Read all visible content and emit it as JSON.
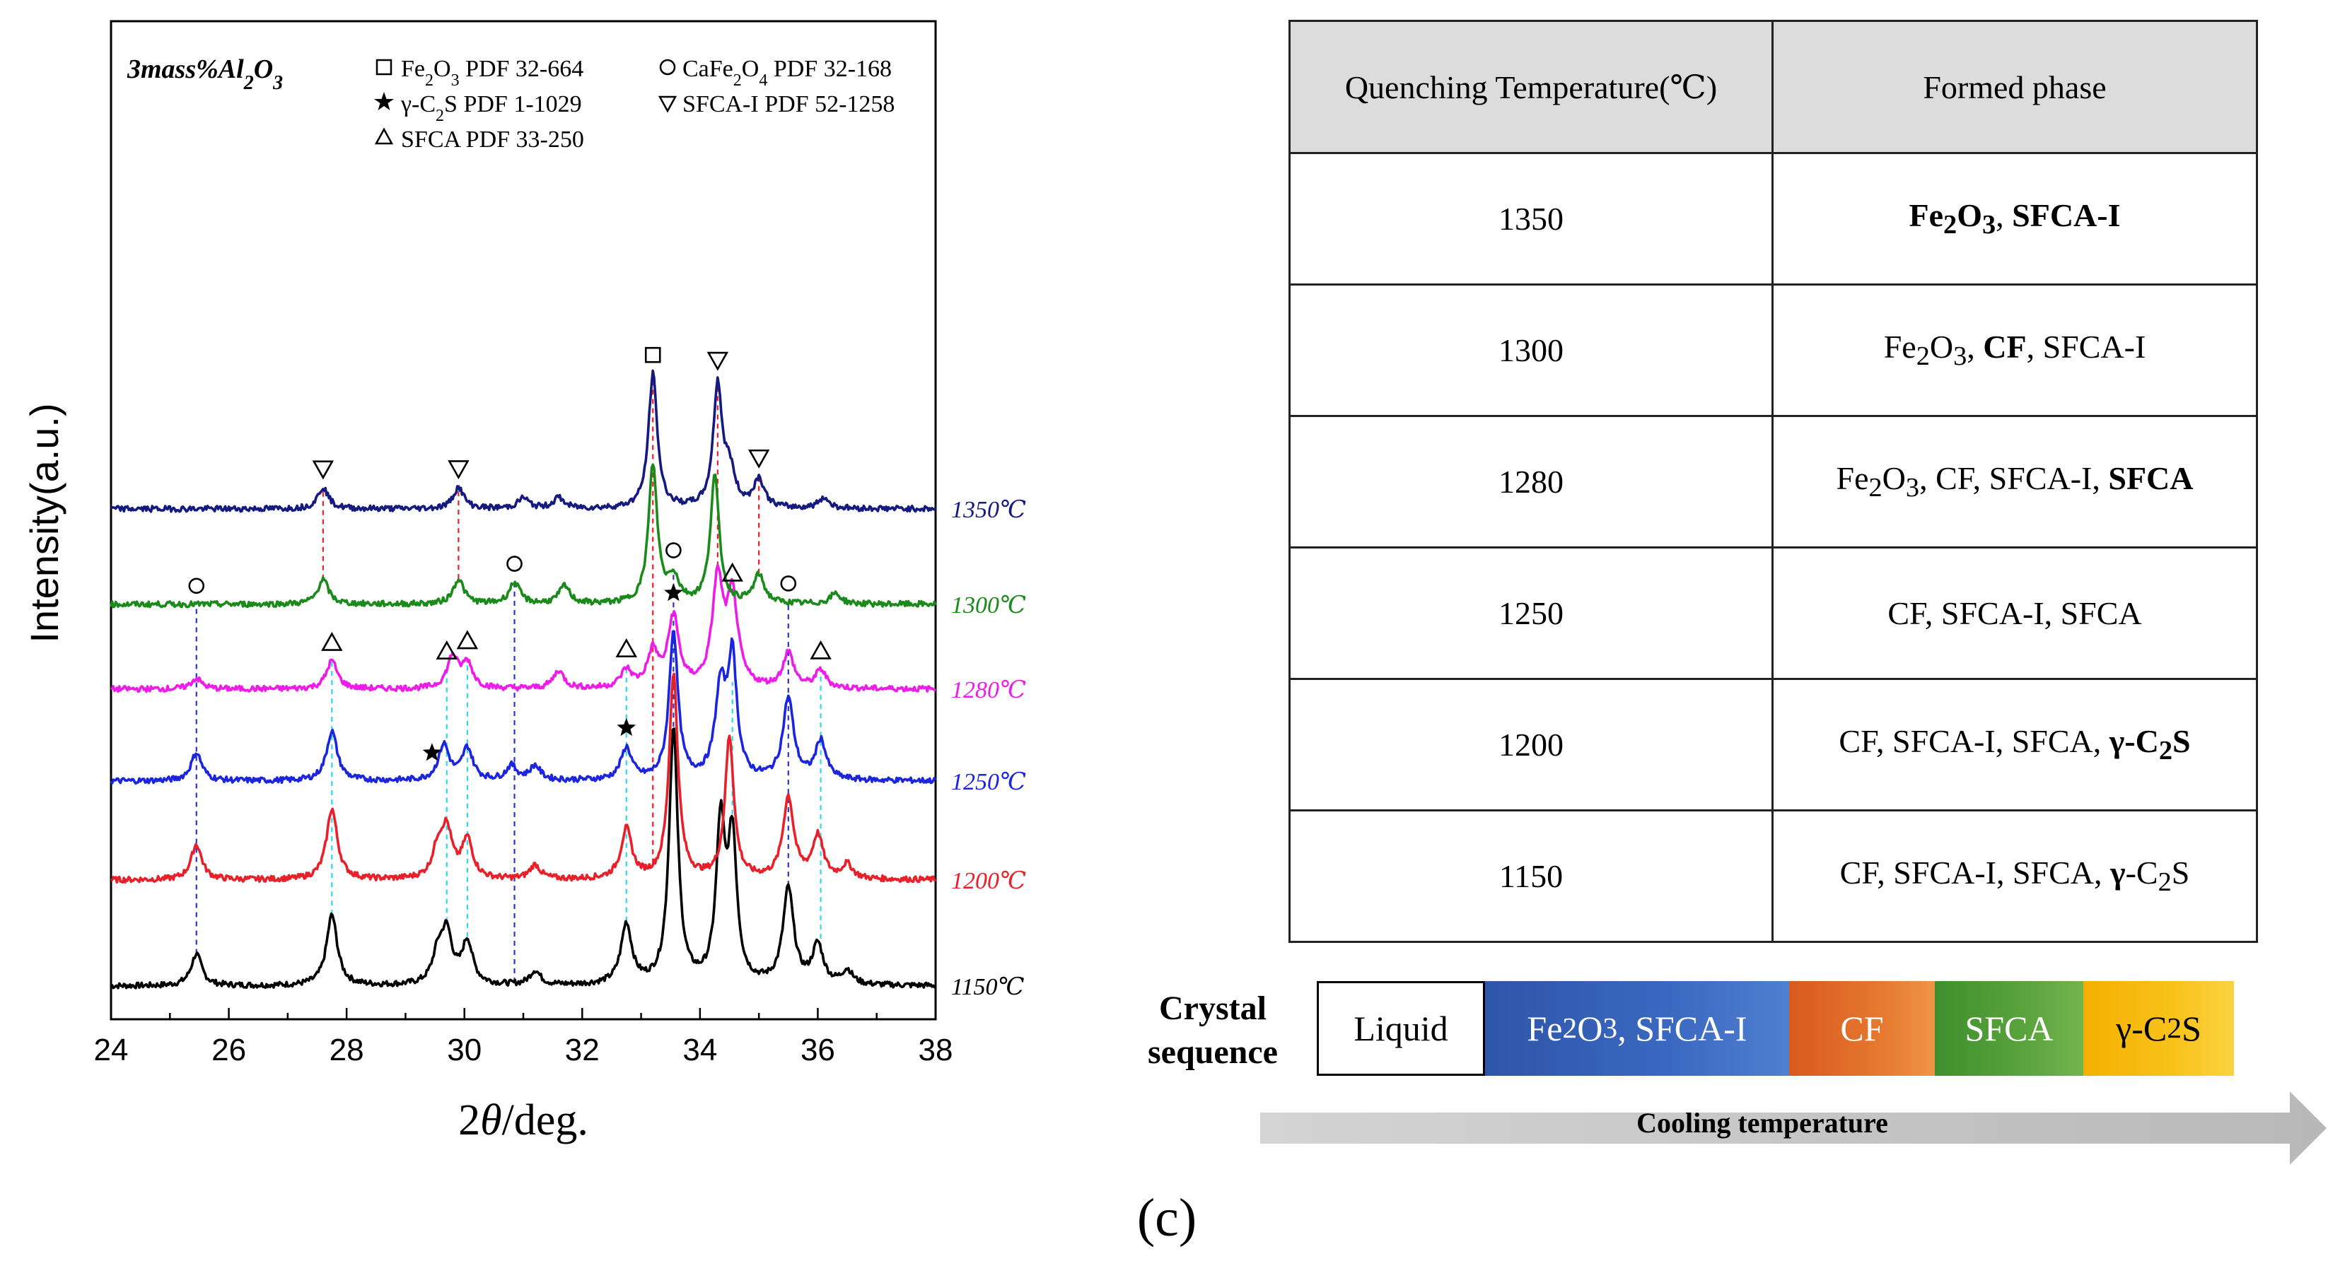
{
  "chart_data": {
    "type": "line",
    "title": "",
    "sample_label": "3mass%Al2O3",
    "xlabel": "2θ/deg.",
    "ylabel": "Intensity(a.u.)",
    "xlim": [
      24,
      38
    ],
    "xticks": [
      24,
      26,
      28,
      30,
      32,
      34,
      36,
      38
    ],
    "y_units": "arbitrary, vertically offset patterns",
    "legend": {
      "placement": "top",
      "entries": [
        {
          "symbol": "square",
          "text": "Fe2O3 PDF 32-664"
        },
        {
          "symbol": "circle",
          "text": "CaFe2O4 PDF 32-168"
        },
        {
          "symbol": "star",
          "text": "γ-C2S PDF 1-1029"
        },
        {
          "symbol": "down-triangle",
          "text": "SFCA-I PDF 52-1258"
        },
        {
          "symbol": "up-triangle",
          "text": "SFCA PDF 33-250"
        }
      ]
    },
    "series": [
      {
        "name": "1150℃",
        "label": "1150℃",
        "color": "#000000",
        "baseline": 0,
        "peaks": [
          [
            25.45,
            9
          ],
          [
            27.75,
            20
          ],
          [
            29.55,
            8
          ],
          [
            29.7,
            14
          ],
          [
            30.05,
            12
          ],
          [
            31.2,
            4
          ],
          [
            32.75,
            17
          ],
          [
            33.55,
            72
          ],
          [
            34.35,
            44
          ],
          [
            34.55,
            40
          ],
          [
            35.5,
            27
          ],
          [
            36.0,
            11
          ],
          [
            36.5,
            4
          ]
        ]
      },
      {
        "name": "1200℃",
        "label": "1200℃",
        "color": "#e8202a",
        "baseline": 30,
        "peaks": [
          [
            25.45,
            10
          ],
          [
            27.75,
            20
          ],
          [
            29.55,
            8
          ],
          [
            29.7,
            13
          ],
          [
            30.05,
            11
          ],
          [
            31.2,
            4
          ],
          [
            32.75,
            14
          ],
          [
            33.55,
            58
          ],
          [
            34.5,
            40
          ],
          [
            35.5,
            23
          ],
          [
            36.0,
            12
          ],
          [
            36.5,
            4
          ]
        ]
      },
      {
        "name": "1250℃",
        "label": "1250℃",
        "color": "#1b25e0",
        "baseline": 58,
        "peaks": [
          [
            25.45,
            8
          ],
          [
            27.75,
            14
          ],
          [
            29.65,
            10
          ],
          [
            30.05,
            9
          ],
          [
            30.8,
            4
          ],
          [
            31.2,
            4
          ],
          [
            32.75,
            9
          ],
          [
            33.55,
            42
          ],
          [
            34.35,
            25
          ],
          [
            34.55,
            33
          ],
          [
            35.5,
            23
          ],
          [
            36.05,
            11
          ]
        ]
      },
      {
        "name": "1280℃",
        "label": "1280℃",
        "color": "#ee1ce8",
        "baseline": 84,
        "peaks": [
          [
            25.45,
            3
          ],
          [
            27.75,
            8
          ],
          [
            29.8,
            9
          ],
          [
            30.05,
            7
          ],
          [
            31.6,
            5
          ],
          [
            32.75,
            5
          ],
          [
            33.2,
            10
          ],
          [
            33.55,
            20
          ],
          [
            34.3,
            30
          ],
          [
            34.55,
            25
          ],
          [
            35.5,
            10
          ],
          [
            36.05,
            5
          ]
        ]
      },
      {
        "name": "1300℃",
        "label": "1300℃",
        "color": "#1a8a1a",
        "baseline": 108,
        "peaks": [
          [
            27.6,
            7
          ],
          [
            29.9,
            7
          ],
          [
            30.85,
            6
          ],
          [
            31.7,
            5
          ],
          [
            33.2,
            39
          ],
          [
            33.55,
            7
          ],
          [
            34.25,
            36
          ],
          [
            35.0,
            8
          ],
          [
            36.3,
            3
          ]
        ]
      },
      {
        "name": "1350℃",
        "label": "1350℃",
        "color": "#151a80",
        "baseline": 135,
        "peaks": [
          [
            27.6,
            6
          ],
          [
            29.9,
            6
          ],
          [
            31.0,
            3
          ],
          [
            31.6,
            3
          ],
          [
            33.2,
            38
          ],
          [
            34.3,
            34
          ],
          [
            34.5,
            10
          ],
          [
            35.0,
            8
          ],
          [
            36.1,
            3
          ]
        ]
      }
    ],
    "markers": [
      {
        "symbol": "square",
        "x": 33.2,
        "over": "1350℃"
      },
      {
        "symbol": "down-triangle",
        "x": 27.6,
        "over": "1350℃"
      },
      {
        "symbol": "down-triangle",
        "x": 29.9,
        "over": "1350℃"
      },
      {
        "symbol": "down-triangle",
        "x": 34.3,
        "over": "1350℃"
      },
      {
        "symbol": "down-triangle",
        "x": 35.0,
        "over": "1350℃"
      },
      {
        "symbol": "circle",
        "x": 25.45,
        "over": "1300℃"
      },
      {
        "symbol": "circle",
        "x": 30.85,
        "over": "1300℃"
      },
      {
        "symbol": "circle",
        "x": 33.55,
        "over": "1300℃"
      },
      {
        "symbol": "circle",
        "x": 35.5,
        "over": "1300℃"
      },
      {
        "symbol": "up-triangle",
        "x": 34.55,
        "over": "1300℃"
      },
      {
        "symbol": "up-triangle",
        "x": 27.75,
        "over": "1280℃"
      },
      {
        "symbol": "up-triangle",
        "x": 29.7,
        "over": "1280℃"
      },
      {
        "symbol": "up-triangle",
        "x": 30.05,
        "over": "1280℃"
      },
      {
        "symbol": "up-triangle",
        "x": 32.75,
        "over": "1280℃"
      },
      {
        "symbol": "up-triangle",
        "x": 36.05,
        "over": "1280℃"
      },
      {
        "symbol": "star",
        "x": 33.55,
        "over": "1280℃"
      },
      {
        "symbol": "star",
        "x": 29.45,
        "over": "1250℃"
      },
      {
        "symbol": "star",
        "x": 32.75,
        "over": "1250℃"
      }
    ],
    "reference_lines": [
      {
        "x": 27.6,
        "color": "#e8202a",
        "from": "1300℃",
        "to": "1350℃"
      },
      {
        "x": 29.9,
        "color": "#e8202a",
        "from": "1300℃",
        "to": "1350℃"
      },
      {
        "x": 33.2,
        "color": "#e8202a",
        "from": "1200℃",
        "to": "1350℃"
      },
      {
        "x": 34.3,
        "color": "#e8202a",
        "from": "1280℃",
        "to": "1350℃"
      },
      {
        "x": 35.0,
        "color": "#e8202a",
        "from": "1300℃",
        "to": "1350℃"
      },
      {
        "x": 25.45,
        "color": "#2a35c8",
        "from": "1150℃",
        "to": "1300℃"
      },
      {
        "x": 30.85,
        "color": "#2a35c8",
        "from": "1150℃",
        "to": "1300℃"
      },
      {
        "x": 33.55,
        "color": "#2a35c8",
        "from": "1150℃",
        "to": "1300℃"
      },
      {
        "x": 35.5,
        "color": "#2a35c8",
        "from": "1150℃",
        "to": "1300℃"
      },
      {
        "x": 27.75,
        "color": "#2fd8e8",
        "from": "1150℃",
        "to": "1280℃"
      },
      {
        "x": 29.7,
        "color": "#2fd8e8",
        "from": "1150℃",
        "to": "1280℃"
      },
      {
        "x": 30.05,
        "color": "#2fd8e8",
        "from": "1150℃",
        "to": "1280℃"
      },
      {
        "x": 32.75,
        "color": "#2fd8e8",
        "from": "1150℃",
        "to": "1280℃"
      },
      {
        "x": 34.55,
        "color": "#2fd8e8",
        "from": "1150℃",
        "to": "1280℃"
      },
      {
        "x": 36.05,
        "color": "#2fd8e8",
        "from": "1150℃",
        "to": "1280℃"
      }
    ]
  },
  "table": {
    "headers": [
      "Quenching Temperature(℃)",
      "Formed phase"
    ],
    "rows": [
      {
        "temp": "1350",
        "phase_html": "<b>Fe<sub>2</sub>O<sub>3</sub></b>, <b>SFCA-I</b>"
      },
      {
        "temp": "1300",
        "phase_html": "Fe<sub>2</sub>O<sub>3</sub>, <b>CF</b>, SFCA-I"
      },
      {
        "temp": "1280",
        "phase_html": "Fe<sub>2</sub>O<sub>3</sub>, CF, SFCA-I, <b>SFCA</b>"
      },
      {
        "temp": "1250",
        "phase_html": "CF, SFCA-I, SFCA"
      },
      {
        "temp": "1200",
        "phase_html": "CF, SFCA-I, SFCA, <b>γ-C<sub>2</sub>S</b>"
      },
      {
        "temp": "1150",
        "phase_html": "CF, SFCA-I, SFCA, <b>γ</b>-C<sub>2</sub>S"
      }
    ]
  },
  "sequence": {
    "title_line1": "Crystal",
    "title_line2": "sequence",
    "stages": [
      {
        "label_html": "Liquid"
      },
      {
        "label_html": "Fe<sub>2</sub>O<sub>3</sub>, SFCA-I"
      },
      {
        "label_html": "CF"
      },
      {
        "label_html": "SFCA"
      },
      {
        "label_html": "γ-C<sub>2</sub>S"
      }
    ],
    "arrow_label": "Cooling temperature",
    "colors": {
      "fe": "#3a68c0",
      "cf": "#e5772e",
      "sfca": "#5aa33c",
      "cs": "#f8c21a"
    }
  },
  "caption": "(c)"
}
